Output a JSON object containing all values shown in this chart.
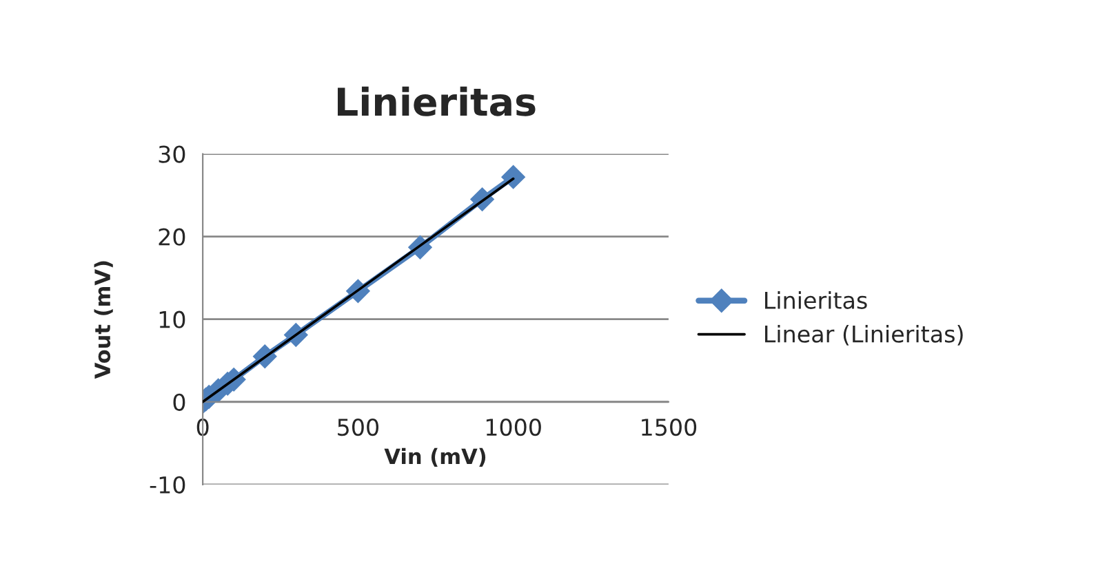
{
  "chart_data": {
    "type": "line",
    "title": "Linieritas",
    "xlabel": "Vin (mV)",
    "ylabel": "Vout (mV)",
    "xlim": [
      0,
      1500
    ],
    "xticks": [
      0,
      500,
      1000,
      1500
    ],
    "ylim": [
      -10,
      30
    ],
    "yticks": [
      -10,
      0,
      10,
      20,
      30
    ],
    "grid": "y",
    "legend": "right",
    "series": [
      {
        "name": "Linieritas",
        "color": "#4f81bd",
        "marker": "diamond",
        "line_style": "solid",
        "x": [
          0,
          10,
          20,
          50,
          80,
          100,
          200,
          300,
          500,
          700,
          900,
          1000
        ],
        "values": [
          0,
          0.3,
          0.6,
          1.4,
          2.2,
          2.7,
          5.5,
          8.1,
          13.4,
          18.7,
          24.5,
          27.2
        ]
      },
      {
        "name": "Linear (Linieritas)",
        "color": "#000000",
        "marker": "none",
        "line_style": "solid",
        "x": [
          0,
          1000
        ],
        "values": [
          0,
          27.0
        ]
      }
    ]
  }
}
